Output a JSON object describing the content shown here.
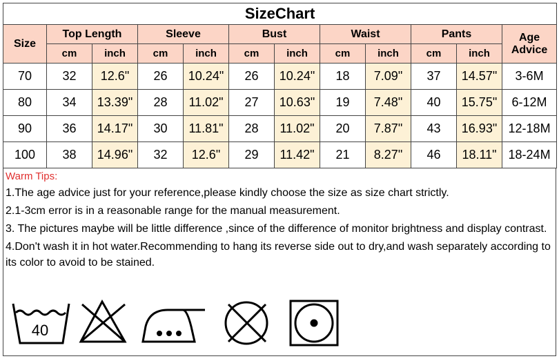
{
  "title": "SizeChart",
  "table": {
    "size_header": "Size",
    "groups": [
      "Top Length",
      "Sleeve",
      "Bust",
      "Waist",
      "Pants"
    ],
    "units": [
      "cm",
      "inch"
    ],
    "age_header": "Age Advice",
    "rows": [
      [
        "70",
        "32",
        "12.6\"",
        "26",
        "10.24\"",
        "26",
        "10.24\"",
        "18",
        "7.09\"",
        "37",
        "14.57\"",
        "3-6M"
      ],
      [
        "80",
        "34",
        "13.39\"",
        "28",
        "11.02\"",
        "27",
        "10.63\"",
        "19",
        "7.48\"",
        "40",
        "15.75\"",
        "6-12M"
      ],
      [
        "90",
        "36",
        "14.17\"",
        "30",
        "11.81\"",
        "28",
        "11.02\"",
        "20",
        "7.87\"",
        "43",
        "16.93\"",
        "12-18M"
      ],
      [
        "100",
        "38",
        "14.96\"",
        "32",
        "12.6\"",
        "29",
        "11.42\"",
        "21",
        "8.27\"",
        "46",
        "18.11\"",
        "18-24M"
      ]
    ]
  },
  "tips": {
    "title": "Warm Tips:",
    "lines": [
      "1.The age advice just for your reference,please kindly choose the size as size chart strictly.",
      "2.1-3cm error is in a reasonable range for the manual measurement.",
      "3. The pictures maybe will be little difference ,since of the difference of monitor brightness and display contrast.",
      "4.Don't wash it in hot water.Recommending to hang its reverse side out to dry,and wash separately according to its color to avoid to be stained."
    ]
  },
  "icons": {
    "wash_temp": "40"
  }
}
